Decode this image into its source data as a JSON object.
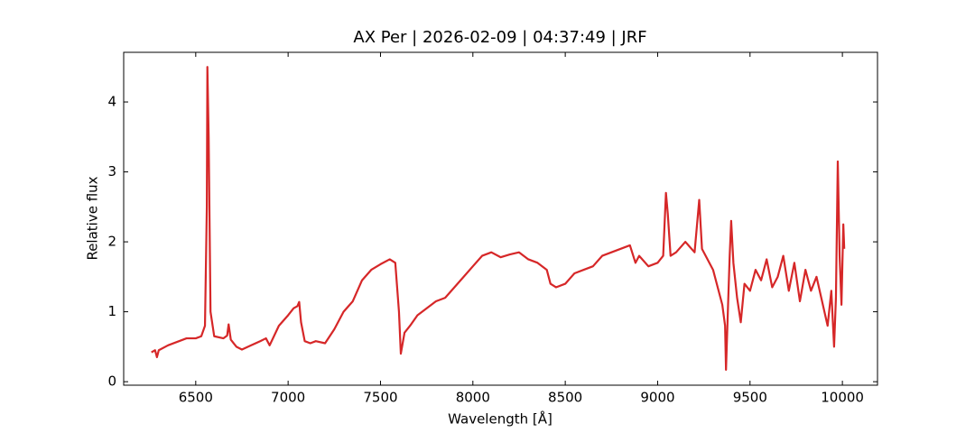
{
  "chart_data": {
    "type": "line",
    "title": "AX Per | 2026-02-09 | 04:37:49 | JRF",
    "x_label": "Wavelength [Å]",
    "y_label": "Relative flux",
    "x": [
      6260,
      6280,
      6290,
      6300,
      6350,
      6400,
      6450,
      6500,
      6530,
      6550,
      6560,
      6563,
      6570,
      6580,
      6600,
      6650,
      6670,
      6678,
      6690,
      6720,
      6750,
      6800,
      6850,
      6880,
      6900,
      6950,
      7000,
      7030,
      7050,
      7060,
      7070,
      7090,
      7120,
      7150,
      7200,
      7250,
      7300,
      7350,
      7400,
      7450,
      7500,
      7550,
      7580,
      7600,
      7610,
      7630,
      7660,
      7700,
      7750,
      7800,
      7850,
      7900,
      7950,
      8000,
      8050,
      8100,
      8150,
      8200,
      8250,
      8300,
      8350,
      8400,
      8420,
      8450,
      8500,
      8550,
      8600,
      8650,
      8700,
      8750,
      8800,
      8850,
      8880,
      8900,
      8950,
      9000,
      9030,
      9045,
      9055,
      9070,
      9100,
      9150,
      9200,
      9225,
      9240,
      9280,
      9300,
      9330,
      9350,
      9365,
      9370,
      9380,
      9390,
      9398,
      9410,
      9430,
      9450,
      9470,
      9500,
      9530,
      9560,
      9590,
      9620,
      9650,
      9680,
      9710,
      9740,
      9770,
      9800,
      9830,
      9860,
      9890,
      9920,
      9940,
      9955,
      9965,
      9975,
      9985,
      9995,
      10005,
      10010
    ],
    "series": [
      {
        "name": "AX Per",
        "color": "#d62728",
        "values": [
          0.42,
          0.45,
          0.35,
          0.45,
          0.52,
          0.57,
          0.62,
          0.62,
          0.65,
          0.8,
          2.5,
          4.5,
          3.5,
          1.0,
          0.65,
          0.62,
          0.66,
          0.82,
          0.6,
          0.5,
          0.46,
          0.52,
          0.58,
          0.62,
          0.52,
          0.8,
          0.95,
          1.05,
          1.08,
          1.14,
          0.85,
          0.58,
          0.55,
          0.58,
          0.55,
          0.75,
          1.0,
          1.15,
          1.45,
          1.6,
          1.68,
          1.75,
          1.7,
          1.0,
          0.4,
          0.7,
          0.8,
          0.95,
          1.05,
          1.15,
          1.2,
          1.35,
          1.5,
          1.65,
          1.8,
          1.85,
          1.78,
          1.82,
          1.85,
          1.75,
          1.7,
          1.6,
          1.4,
          1.35,
          1.4,
          1.55,
          1.6,
          1.65,
          1.8,
          1.85,
          1.9,
          1.95,
          1.7,
          1.8,
          1.65,
          1.7,
          1.8,
          2.7,
          2.4,
          1.8,
          1.85,
          2.0,
          1.85,
          2.6,
          1.9,
          1.7,
          1.6,
          1.3,
          1.1,
          0.8,
          0.17,
          1.0,
          1.8,
          2.3,
          1.7,
          1.2,
          0.85,
          1.4,
          1.3,
          1.6,
          1.45,
          1.75,
          1.35,
          1.5,
          1.8,
          1.3,
          1.7,
          1.15,
          1.6,
          1.3,
          1.5,
          1.15,
          0.8,
          1.3,
          0.5,
          1.2,
          3.15,
          1.8,
          1.1,
          2.25,
          1.9
        ]
      }
    ],
    "xlim": [
      6110,
      10190
    ],
    "ylim": [
      -0.05,
      4.71
    ],
    "xticks": [
      6500,
      7000,
      7500,
      8000,
      8500,
      9000,
      9500,
      10000
    ],
    "yticks": [
      0,
      1,
      2,
      3,
      4
    ]
  }
}
